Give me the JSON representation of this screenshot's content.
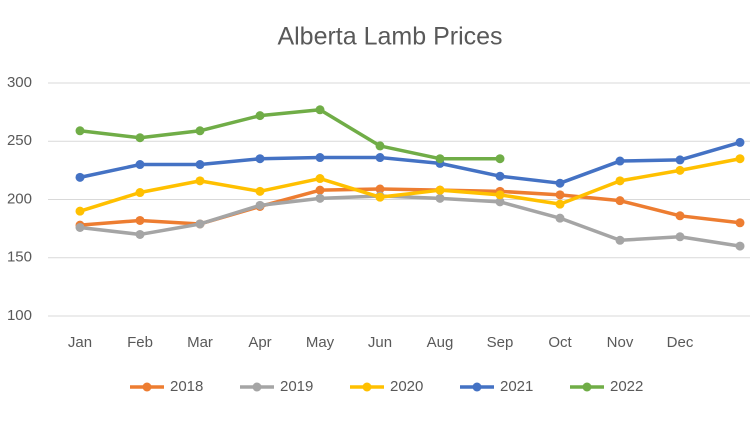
{
  "chart_data": {
    "type": "line",
    "title": "Alberta Lamb Prices",
    "categories": [
      "Jan",
      "Feb",
      "Mar",
      "Apr",
      "May",
      "Jun",
      "Aug",
      "Sep",
      "Oct",
      "Nov",
      "Dec",
      null
    ],
    "series": [
      {
        "name": "2018",
        "color": "#ed7d31",
        "values": [
          178,
          182,
          179,
          194,
          208,
          209,
          208,
          207,
          204,
          199,
          186,
          180
        ]
      },
      {
        "name": "2019",
        "color": "#a5a5a5",
        "values": [
          176,
          170,
          179,
          195,
          201,
          203,
          201,
          198,
          184,
          165,
          168,
          160
        ]
      },
      {
        "name": "2020",
        "color": "#ffc000",
        "values": [
          190,
          206,
          216,
          207,
          218,
          202,
          208,
          204,
          196,
          216,
          225,
          235
        ]
      },
      {
        "name": "2021",
        "color": "#4472c4",
        "values": [
          219,
          230,
          230,
          235,
          236,
          236,
          231,
          220,
          214,
          233,
          234,
          249
        ]
      },
      {
        "name": "2022",
        "color": "#70ad47",
        "values": [
          259,
          253,
          259,
          272,
          277,
          246,
          235,
          235,
          null,
          null,
          null,
          null
        ]
      }
    ],
    "ylim": [
      100,
      300
    ],
    "yticks": [
      100,
      150,
      200,
      250,
      300
    ],
    "grid": true
  }
}
